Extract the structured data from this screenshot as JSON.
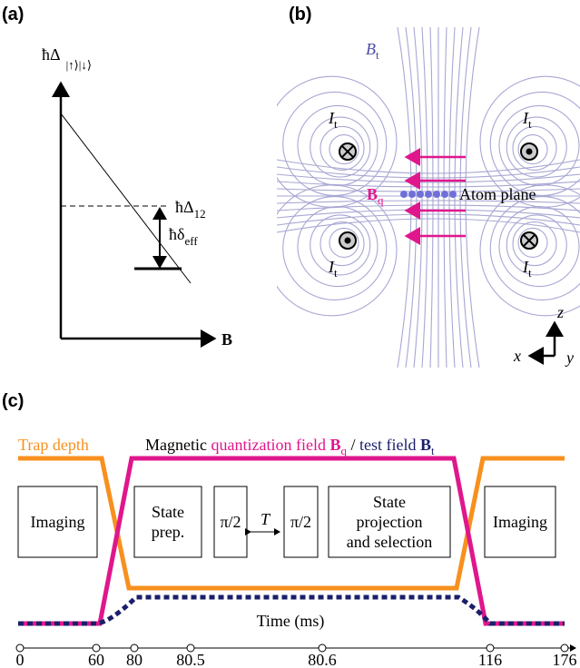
{
  "panels": {
    "a": {
      "label": "(a)",
      "y_axis": {
        "symbol": "ħΔ",
        "subscript": "|↑⟩|↓⟩"
      },
      "x_axis": "B",
      "level": {
        "symbol": "ħΔ",
        "subscript": "12"
      },
      "detuning": {
        "symbol": "ħδ",
        "subscript": "eff"
      }
    },
    "b": {
      "label": "(b)",
      "field": {
        "symbol": "B",
        "subscript": "t"
      },
      "currents": [
        {
          "symbol": "I",
          "subscript": "t"
        },
        {
          "symbol": "I",
          "subscript": "t"
        },
        {
          "symbol": "I",
          "subscript": "t"
        },
        {
          "symbol": "I",
          "subscript": "t"
        }
      ],
      "quantization": {
        "symbol": "B",
        "subscript": "q"
      },
      "atom_plane": "Atom plane",
      "axes": {
        "z": "z",
        "x": "x",
        "y": "y"
      }
    },
    "c": {
      "label": "(c)",
      "trap_depth": "Trap depth",
      "legend": {
        "prefix": "Magnetic ",
        "quantization": "quantization field ",
        "bq": {
          "symbol": "B",
          "subscript": "q"
        },
        "separator": " / ",
        "test": "test field ",
        "bt": {
          "symbol": "B",
          "subscript": "t"
        }
      },
      "boxes": [
        [
          "Imaging"
        ],
        [
          "State",
          "prep."
        ],
        [
          "π/2"
        ],
        [
          "π/2"
        ],
        [
          "State",
          "projection",
          "and selection"
        ],
        [
          "Imaging"
        ]
      ],
      "interval": "T",
      "time_label": "Time (ms)",
      "ticks": [
        0,
        60,
        80,
        80.5,
        80.6,
        116,
        176
      ]
    }
  }
}
